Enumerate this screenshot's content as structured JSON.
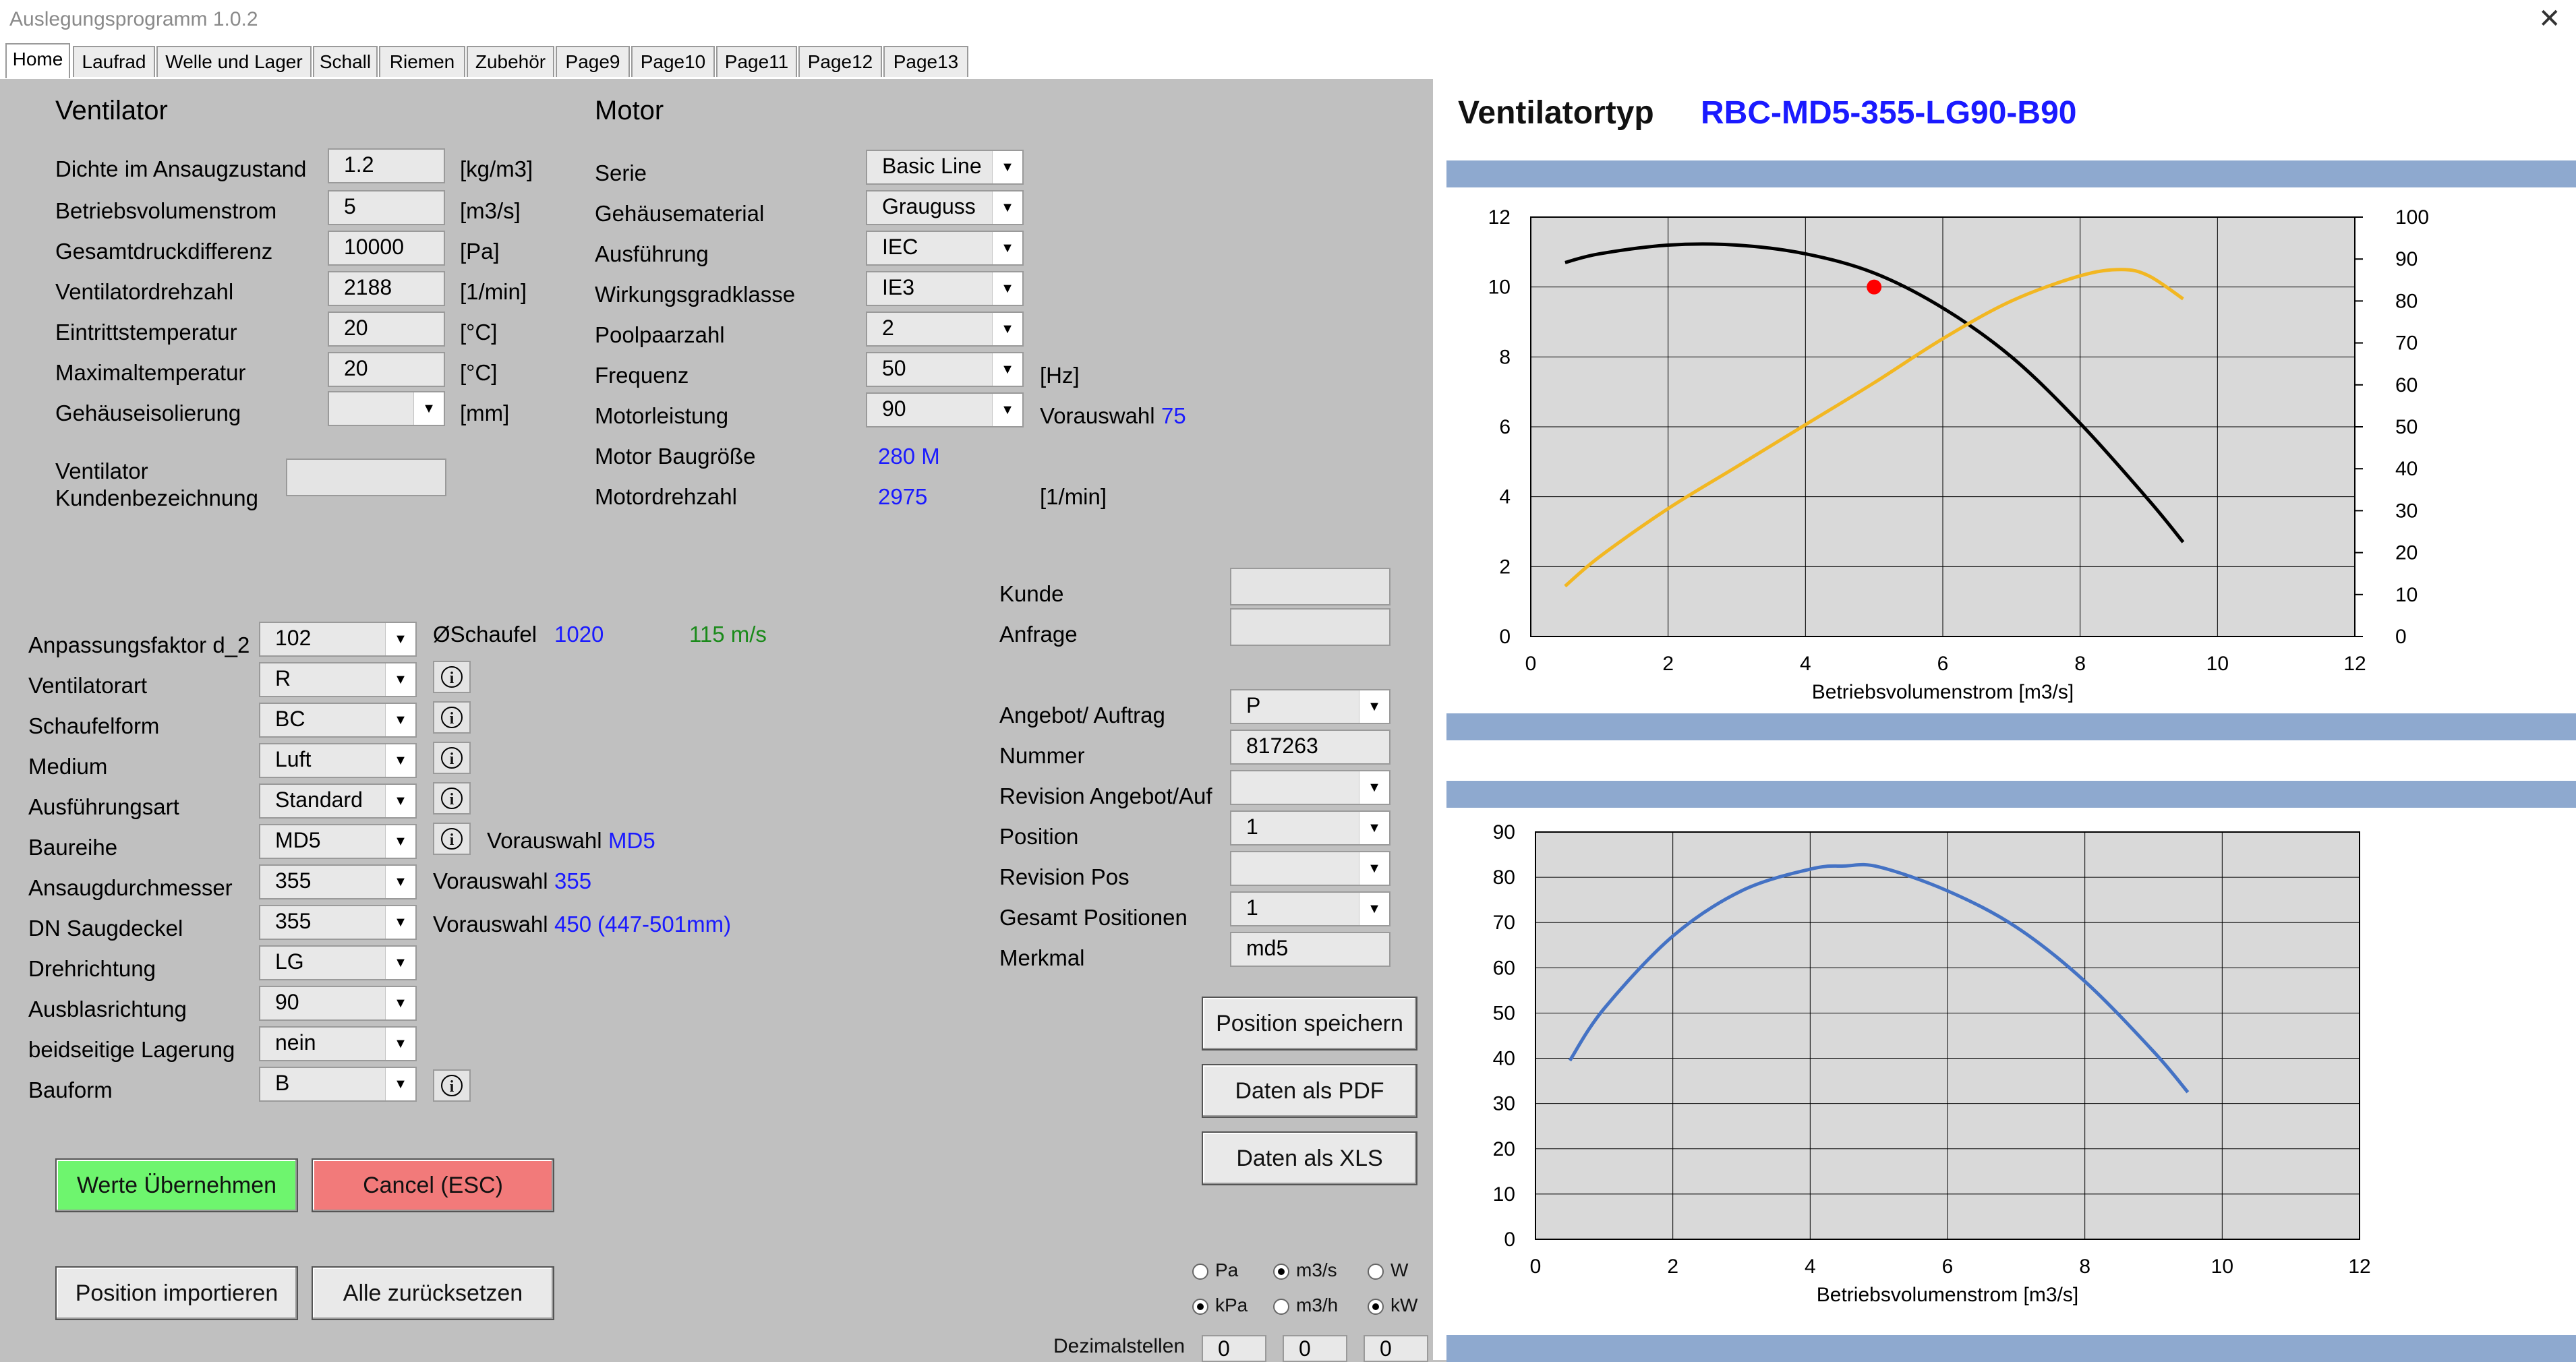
{
  "window": {
    "title": "Auslegungsprogramm 1.0.2",
    "close_glyph": "✕"
  },
  "tabs": [
    "Home",
    "Laufrad",
    "Welle und Lager",
    "Schall",
    "Riemen",
    "Zubehör",
    "Page9",
    "Page10",
    "Page11",
    "Page12",
    "Page13"
  ],
  "ventilator": {
    "heading": "Ventilator",
    "fields": [
      {
        "label": "Dichte im Ansaugzustand",
        "value": "1.2",
        "unit": "[kg/m3]"
      },
      {
        "label": "Betriebsvolumenstrom",
        "value": "5",
        "unit": "[m3/s]"
      },
      {
        "label": "Gesamtdruckdifferenz",
        "value": "10000",
        "unit": "[Pa]"
      },
      {
        "label": "Ventilatordrehzahl",
        "value": "2188",
        "unit": "[1/min]"
      },
      {
        "label": "Eintrittstemperatur",
        "value": "20",
        "unit": "[°C]"
      },
      {
        "label": "Maximaltemperatur",
        "value": "20",
        "unit": "[°C]"
      },
      {
        "label": "Gehäuseisolierung",
        "value": "",
        "unit": "[mm]"
      }
    ],
    "kunden_label_1": "Ventilator",
    "kunden_label_2": "Kundenbezeichnung",
    "kunden_value": ""
  },
  "motor": {
    "heading": "Motor",
    "fields": [
      {
        "label": "Serie",
        "value": "Basic Line"
      },
      {
        "label": "Gehäusematerial",
        "value": "Grauguss"
      },
      {
        "label": "Ausführung",
        "value": "IEC"
      },
      {
        "label": "Wirkungsgradklasse",
        "value": "IE3"
      },
      {
        "label": "Poolpaarzahl",
        "value": "2"
      },
      {
        "label": "Frequenz",
        "value": "50"
      },
      {
        "label": "Motorleistung",
        "value": "90"
      }
    ],
    "frequenz_unit": "[Hz]",
    "vorauswahl_label": "Vorauswahl",
    "vorauswahl_value": "75",
    "baugroesse_label": "Motor Baugröße",
    "baugroesse_value": "280 M",
    "drehzahl_label": "Motordrehzahl",
    "drehzahl_value": "2975",
    "drehzahl_unit": "[1/min]"
  },
  "config": {
    "fields": [
      {
        "label": "Anpassungsfaktor d_2",
        "value": "102"
      },
      {
        "label": "Ventilatorart",
        "value": "R"
      },
      {
        "label": "Schaufelform",
        "value": "BC"
      },
      {
        "label": "Medium",
        "value": "Luft"
      },
      {
        "label": "Ausführungsart",
        "value": "Standard"
      },
      {
        "label": "Baureihe",
        "value": "MD5"
      },
      {
        "label": "Ansaugdurchmesser",
        "value": "355"
      },
      {
        "label": "DN Saugdeckel",
        "value": "355"
      },
      {
        "label": "Drehrichtung",
        "value": "LG"
      },
      {
        "label": "Ausblasrichtung",
        "value": "90"
      },
      {
        "label": "beidseitige Lagerung",
        "value": "nein"
      },
      {
        "label": "Bauform",
        "value": "B"
      }
    ],
    "schaufel_label": "ØSchaufel",
    "schaufel_value": "1020",
    "speed_value": "115 m/s",
    "vorauswahl_label": "Vorauswahl",
    "baureihe_vorauswahl": "MD5",
    "ansaug_vorauswahl": "355",
    "saugdeckel_vorauswahl": "450",
    "saugdeckel_range": "(447-501mm)"
  },
  "order": {
    "kunde_label": "Kunde",
    "anfrage_label": "Anfrage",
    "fields": [
      {
        "label": "Angebot/ Auftrag",
        "value": "P",
        "type": "combo"
      },
      {
        "label": "Nummer",
        "value": "817263",
        "type": "input"
      },
      {
        "label": "Revision Angebot/Auf",
        "value": "",
        "type": "combo"
      },
      {
        "label": "Position",
        "value": "1",
        "type": "combo"
      },
      {
        "label": "Revision Pos",
        "value": "",
        "type": "combo"
      },
      {
        "label": "Gesamt Positionen",
        "value": "1",
        "type": "combo"
      },
      {
        "label": "Merkmal",
        "value": "md5",
        "type": "input"
      }
    ]
  },
  "buttons": {
    "position_speichern": "Position speichern",
    "daten_pdf": "Daten als PDF",
    "daten_xls": "Daten als XLS",
    "werte_uebernehmen": "Werte Übernehmen",
    "cancel": "Cancel (ESC)",
    "position_importieren": "Position importieren",
    "alle_zuruecksetzen": "Alle zurücksetzen"
  },
  "units_radio": {
    "pressure": [
      {
        "label": "Pa",
        "checked": false
      },
      {
        "label": "kPa",
        "checked": true
      }
    ],
    "flow": [
      {
        "label": "m3/s",
        "checked": true
      },
      {
        "label": "m3/h",
        "checked": false
      }
    ],
    "power": [
      {
        "label": "W",
        "checked": false
      },
      {
        "label": "kW",
        "checked": true
      }
    ],
    "dezimal_label": "Dezimalstellen",
    "dezimal_values": [
      "0",
      "0",
      "0"
    ]
  },
  "header": {
    "label": "Ventilatortyp",
    "value": "RBC-MD5-355-LG90-B90"
  },
  "colors": {
    "accent_blue": "#1a1aff",
    "green": "#1a8a1a",
    "werte_btn": "#6ef56e",
    "cancel_btn": "#f27a7a",
    "band": "#8ea9cf"
  },
  "chart_data": [
    {
      "type": "line",
      "xlabel": "Betriebsvolumenstrom  [m3/s]",
      "xlim": [
        0,
        12
      ],
      "xticks": [
        0,
        2,
        4,
        6,
        8,
        10,
        12
      ],
      "ylim_left": [
        0,
        12
      ],
      "yticks_left": [
        0,
        2,
        4,
        6,
        8,
        10,
        12
      ],
      "ylim_right": [
        0,
        100
      ],
      "yticks_right": [
        0,
        10,
        20,
        30,
        40,
        50,
        60,
        70,
        80,
        90,
        100
      ],
      "grid": true,
      "series": [
        {
          "axis": "left",
          "color": "#000000",
          "x": [
            0.5,
            1,
            2,
            3,
            4,
            5,
            6,
            7,
            8,
            9,
            9.5
          ],
          "y": [
            10.7,
            10.95,
            11.2,
            11.2,
            10.95,
            10.4,
            9.4,
            8.0,
            6.1,
            3.9,
            2.7
          ]
        },
        {
          "axis": "right",
          "color": "#f2b722",
          "x": [
            0.5,
            1,
            2,
            3,
            4,
            5,
            6,
            7,
            8,
            8.6,
            9,
            9.5
          ],
          "y": [
            12,
            19,
            30.5,
            40.5,
            50.5,
            60.5,
            71,
            80,
            86,
            87.5,
            86,
            80.5
          ]
        }
      ],
      "operating_point": {
        "x": 5,
        "y": 10,
        "color": "#ff0000"
      }
    },
    {
      "type": "line",
      "xlabel": "Betriebsvolumenstrom [m3/s]",
      "xlim": [
        0,
        12
      ],
      "xticks": [
        0,
        2,
        4,
        6,
        8,
        10,
        12
      ],
      "ylim": [
        0,
        90
      ],
      "yticks": [
        0,
        10,
        20,
        30,
        40,
        50,
        60,
        70,
        80,
        90
      ],
      "grid": true,
      "series": [
        {
          "color": "#4472c4",
          "x": [
            0.5,
            1,
            2,
            3,
            4,
            4.5,
            5,
            6,
            7,
            8,
            9,
            9.5
          ],
          "y": [
            39.5,
            51,
            67,
            77,
            81.8,
            82.5,
            82.3,
            77,
            69,
            57,
            41.5,
            32.5
          ]
        }
      ]
    }
  ]
}
